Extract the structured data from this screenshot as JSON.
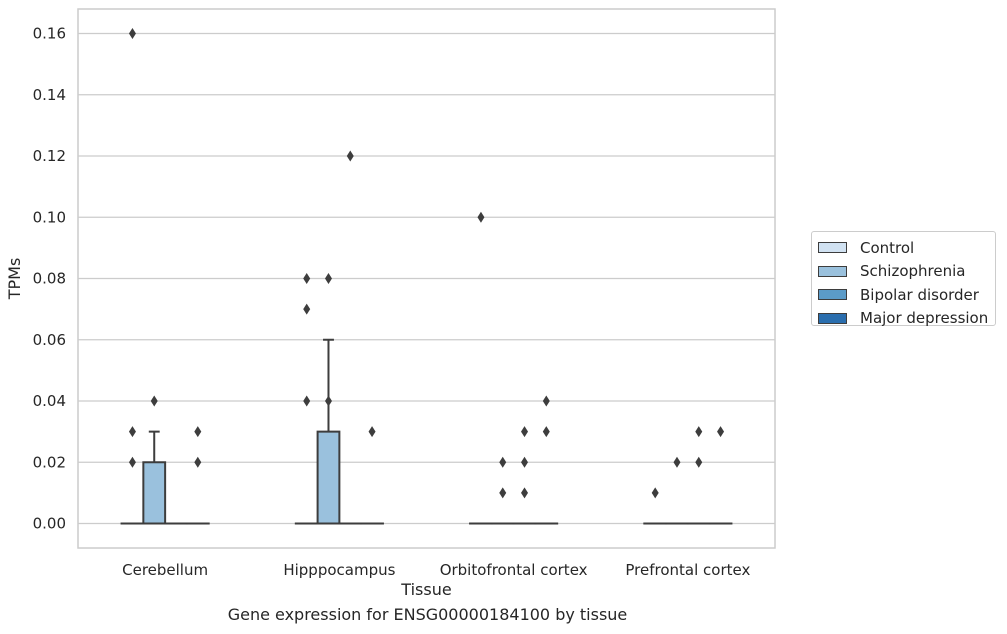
{
  "caption": "Gene expression for ENSG00000184100 by tissue",
  "chart_data": {
    "type": "box",
    "title": "",
    "xlabel": "Tissue",
    "ylabel": "TPMs",
    "ylim": [
      -0.008,
      0.168
    ],
    "yticks": [
      "0.00",
      "0.02",
      "0.04",
      "0.06",
      "0.08",
      "0.10",
      "0.12",
      "0.14",
      "0.16"
    ],
    "grid": "horizontal",
    "legend_position": "right",
    "categories": [
      "Cerebellum",
      "Hipppocampus",
      "Orbitofrontal cortex",
      "Prefrontal cortex"
    ],
    "series": [
      {
        "name": "Control",
        "color": "#d1e2f2",
        "boxes": [
          {
            "q1": 0.0,
            "median": 0.0,
            "q3": 0.0,
            "whisker_low": 0.0,
            "whisker_high": 0.0,
            "outliers": [
              0.02,
              0.03,
              0.16
            ]
          },
          {
            "q1": 0.0,
            "median": 0.0,
            "q3": 0.0,
            "whisker_low": 0.0,
            "whisker_high": 0.0,
            "outliers": [
              0.04,
              0.07,
              0.08
            ]
          },
          {
            "q1": 0.0,
            "median": 0.0,
            "q3": 0.0,
            "whisker_low": 0.0,
            "whisker_high": 0.0,
            "outliers": [
              0.1
            ]
          },
          {
            "q1": 0.0,
            "median": 0.0,
            "q3": 0.0,
            "whisker_low": 0.0,
            "whisker_high": 0.0,
            "outliers": [
              0.01
            ]
          }
        ]
      },
      {
        "name": "Schizophrenia",
        "color": "#9ac1dd",
        "boxes": [
          {
            "q1": 0.0,
            "median": 0.0,
            "q3": 0.02,
            "whisker_low": 0.0,
            "whisker_high": 0.03,
            "outliers": [
              0.04
            ]
          },
          {
            "q1": 0.0,
            "median": 0.0,
            "q3": 0.03,
            "whisker_low": 0.0,
            "whisker_high": 0.06,
            "outliers": [
              0.04,
              0.08
            ]
          },
          {
            "q1": 0.0,
            "median": 0.0,
            "q3": 0.0,
            "whisker_low": 0.0,
            "whisker_high": 0.0,
            "outliers": [
              0.01,
              0.02
            ]
          },
          {
            "q1": 0.0,
            "median": 0.0,
            "q3": 0.0,
            "whisker_low": 0.0,
            "whisker_high": 0.0,
            "outliers": [
              0.02
            ]
          }
        ]
      },
      {
        "name": "Bipolar disorder",
        "color": "#5b9bc8",
        "boxes": [
          {
            "q1": 0.0,
            "median": 0.0,
            "q3": 0.0,
            "whisker_low": 0.0,
            "whisker_high": 0.0,
            "outliers": []
          },
          {
            "q1": 0.0,
            "median": 0.0,
            "q3": 0.0,
            "whisker_low": 0.0,
            "whisker_high": 0.0,
            "outliers": [
              0.12
            ]
          },
          {
            "q1": 0.0,
            "median": 0.0,
            "q3": 0.0,
            "whisker_low": 0.0,
            "whisker_high": 0.0,
            "outliers": [
              0.01,
              0.02,
              0.03
            ]
          },
          {
            "q1": 0.0,
            "median": 0.0,
            "q3": 0.0,
            "whisker_low": 0.0,
            "whisker_high": 0.0,
            "outliers": [
              0.02,
              0.03
            ]
          }
        ]
      },
      {
        "name": "Major depression",
        "color": "#2a6eae",
        "boxes": [
          {
            "q1": 0.0,
            "median": 0.0,
            "q3": 0.0,
            "whisker_low": 0.0,
            "whisker_high": 0.0,
            "outliers": [
              0.02,
              0.03
            ]
          },
          {
            "q1": 0.0,
            "median": 0.0,
            "q3": 0.0,
            "whisker_low": 0.0,
            "whisker_high": 0.0,
            "outliers": [
              0.03
            ]
          },
          {
            "q1": 0.0,
            "median": 0.0,
            "q3": 0.0,
            "whisker_low": 0.0,
            "whisker_high": 0.0,
            "outliers": [
              0.03,
              0.04
            ]
          },
          {
            "q1": 0.0,
            "median": 0.0,
            "q3": 0.0,
            "whisker_low": 0.0,
            "whisker_high": 0.0,
            "outliers": [
              0.03
            ]
          }
        ]
      }
    ]
  }
}
